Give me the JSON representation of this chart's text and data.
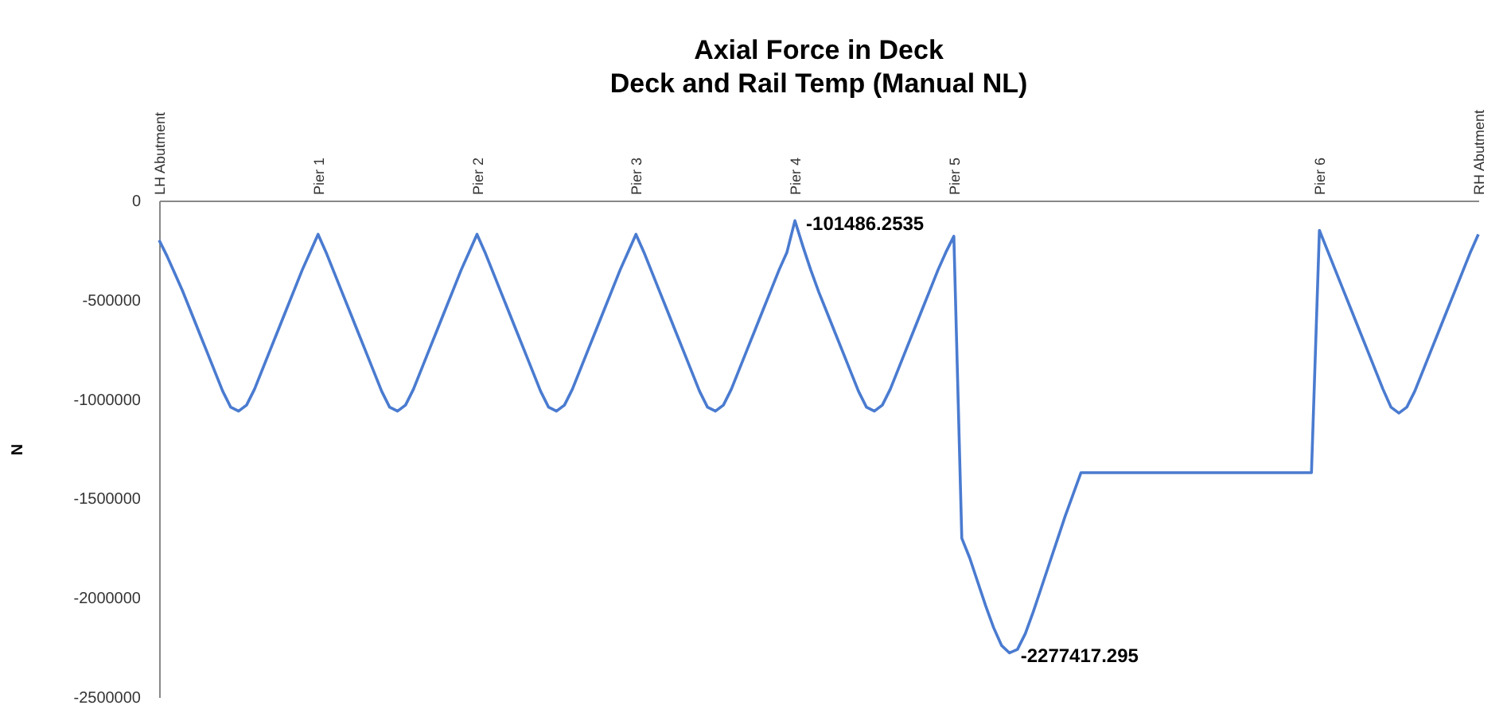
{
  "chart_data": {
    "type": "line",
    "title": "Axial Force in Deck",
    "subtitle": "Deck and Rail Temp (Manual NL)",
    "ylabel": "N",
    "categories": [
      "LH Abutment",
      null,
      null,
      null,
      null,
      null,
      null,
      null,
      null,
      null,
      null,
      null,
      null,
      null,
      null,
      null,
      null,
      null,
      null,
      null,
      "Pier 1",
      null,
      null,
      null,
      null,
      null,
      null,
      null,
      null,
      null,
      null,
      null,
      null,
      null,
      null,
      null,
      null,
      null,
      null,
      null,
      "Pier 2",
      null,
      null,
      null,
      null,
      null,
      null,
      null,
      null,
      null,
      null,
      null,
      null,
      null,
      null,
      null,
      null,
      null,
      null,
      null,
      "Pier 3",
      null,
      null,
      null,
      null,
      null,
      null,
      null,
      null,
      null,
      null,
      null,
      null,
      null,
      null,
      null,
      null,
      null,
      null,
      null,
      "Pier 4",
      null,
      null,
      null,
      null,
      null,
      null,
      null,
      null,
      null,
      null,
      null,
      null,
      null,
      null,
      null,
      null,
      null,
      null,
      null,
      "Pier 5",
      null,
      null,
      null,
      null,
      null,
      null,
      null,
      null,
      null,
      null,
      null,
      null,
      null,
      null,
      null,
      null,
      null,
      null,
      null,
      null,
      null,
      null,
      null,
      null,
      null,
      null,
      null,
      null,
      null,
      null,
      null,
      null,
      null,
      null,
      null,
      null,
      null,
      null,
      null,
      null,
      null,
      null,
      null,
      null,
      null,
      "Pier 6",
      null,
      null,
      null,
      null,
      null,
      null,
      null,
      null,
      null,
      null,
      null,
      null,
      null,
      null,
      null,
      null,
      null,
      null,
      null,
      "RH Abutment"
    ],
    "series": [
      {
        "color": "#4a7bd0",
        "values": [
          -200000,
          -280000,
          -370000,
          -460000,
          -560000,
          -660000,
          -760000,
          -860000,
          -960000,
          -1040000,
          -1060000,
          -1030000,
          -950000,
          -850000,
          -750000,
          -650000,
          -550000,
          -450000,
          -350000,
          -260000,
          -170000,
          -260000,
          -360000,
          -460000,
          -560000,
          -660000,
          -760000,
          -860000,
          -960000,
          -1040000,
          -1060000,
          -1030000,
          -950000,
          -850000,
          -750000,
          -650000,
          -550000,
          -450000,
          -350000,
          -260000,
          -170000,
          -260000,
          -360000,
          -460000,
          -560000,
          -660000,
          -760000,
          -860000,
          -960000,
          -1040000,
          -1060000,
          -1030000,
          -950000,
          -850000,
          -750000,
          -650000,
          -550000,
          -450000,
          -350000,
          -260000,
          -170000,
          -260000,
          -360000,
          -460000,
          -560000,
          -660000,
          -760000,
          -860000,
          -960000,
          -1040000,
          -1060000,
          -1030000,
          -950000,
          -850000,
          -750000,
          -650000,
          -550000,
          -450000,
          -350000,
          -260000,
          -101486.2535,
          -230000,
          -350000,
          -460000,
          -560000,
          -660000,
          -760000,
          -860000,
          -960000,
          -1040000,
          -1060000,
          -1030000,
          -950000,
          -850000,
          -750000,
          -650000,
          -550000,
          -450000,
          -350000,
          -260000,
          -180000,
          -1700000,
          -1800000,
          -1920000,
          -2040000,
          -2150000,
          -2240000,
          -2277417.295,
          -2260000,
          -2180000,
          -2070000,
          -1950000,
          -1830000,
          -1710000,
          -1590000,
          -1480000,
          -1370000,
          -1370000,
          -1370000,
          -1370000,
          -1370000,
          -1370000,
          -1370000,
          -1370000,
          -1370000,
          -1370000,
          -1370000,
          -1370000,
          -1370000,
          -1370000,
          -1370000,
          -1370000,
          -1370000,
          -1370000,
          -1370000,
          -1370000,
          -1370000,
          -1370000,
          -1370000,
          -1370000,
          -1370000,
          -1370000,
          -1370000,
          -1370000,
          -1370000,
          -1370000,
          -150000,
          -250000,
          -350000,
          -450000,
          -550000,
          -650000,
          -750000,
          -850000,
          -950000,
          -1040000,
          -1070000,
          -1040000,
          -960000,
          -860000,
          -760000,
          -660000,
          -560000,
          -460000,
          -360000,
          -260000,
          -170000
        ],
        "value_labels": [
          null,
          null,
          null,
          null,
          null,
          null,
          null,
          null,
          null,
          null,
          null,
          null,
          null,
          null,
          null,
          null,
          null,
          null,
          null,
          null,
          null,
          null,
          null,
          null,
          null,
          null,
          null,
          null,
          null,
          null,
          null,
          null,
          null,
          null,
          null,
          null,
          null,
          null,
          null,
          null,
          null,
          null,
          null,
          null,
          null,
          null,
          null,
          null,
          null,
          null,
          null,
          null,
          null,
          null,
          null,
          null,
          null,
          null,
          null,
          null,
          null,
          null,
          null,
          null,
          null,
          null,
          null,
          null,
          null,
          null,
          null,
          null,
          null,
          null,
          null,
          null,
          null,
          null,
          null,
          null,
          "-101486.2535",
          null,
          null,
          null,
          null,
          null,
          null,
          null,
          null,
          null,
          null,
          null,
          null,
          null,
          null,
          null,
          null,
          null,
          null,
          null,
          null,
          null,
          null,
          null,
          null,
          null,
          null,
          "-2277417.295",
          null,
          null,
          null,
          null,
          null,
          null,
          null,
          null,
          null,
          null,
          null,
          null,
          null,
          null,
          null,
          null,
          null,
          null,
          null,
          null,
          null,
          null,
          null,
          null,
          null,
          null,
          null,
          null,
          null,
          null,
          null,
          null,
          null,
          null,
          null,
          null,
          null,
          null,
          null,
          null,
          null,
          null,
          null,
          null,
          null,
          null,
          null,
          null,
          null,
          null,
          null,
          null,
          null,
          null,
          null,
          null,
          null,
          null,
          null
        ]
      }
    ],
    "ylim": [
      -2500000,
      0
    ],
    "yticks": [
      0,
      -500000,
      -1000000,
      -1500000,
      -2000000,
      -2500000
    ]
  }
}
